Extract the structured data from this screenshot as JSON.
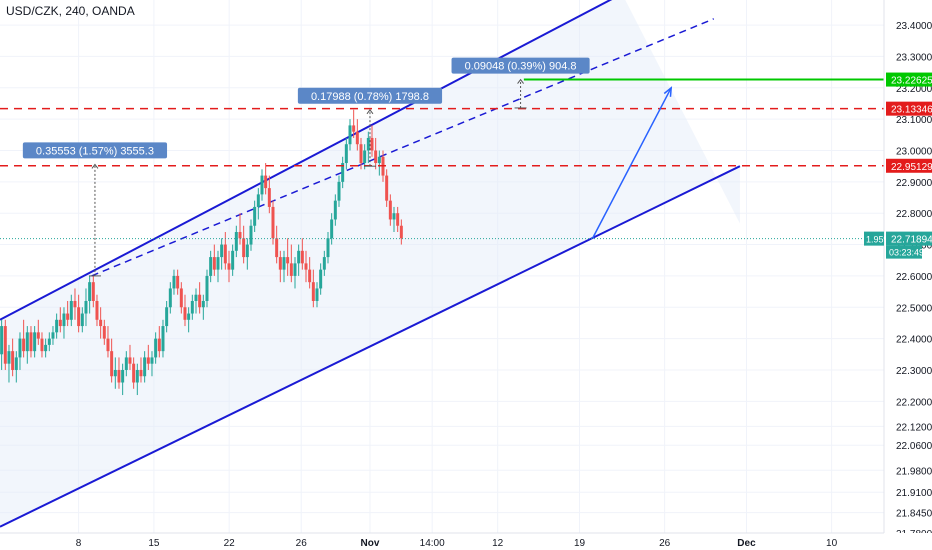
{
  "header": {
    "symbol": "USD/CZK, 240, OANDA"
  },
  "chart_data": {
    "type": "candlestick",
    "yaxis": {
      "range": [
        21.78,
        23.48
      ],
      "ticks": [
        "23.40000",
        "23.30000",
        "23.20000",
        "23.10000",
        "23.00000",
        "22.90000",
        "22.80000",
        "22.70000",
        "22.60000",
        "22.50000",
        "22.40000",
        "22.30000",
        "22.20000",
        "22.12000",
        "22.06000",
        "21.98000",
        "21.91000",
        "21.84500",
        "21.78000"
      ]
    },
    "xaxis": {
      "ticks": [
        {
          "label": "8",
          "x": 24
        },
        {
          "label": "15",
          "x": 47
        },
        {
          "label": "22",
          "x": 70
        },
        {
          "label": "26",
          "x": 92
        },
        {
          "label": "Nov",
          "x": 113
        },
        {
          "label": "14:00",
          "x": 132
        },
        {
          "label": "12",
          "x": 152
        },
        {
          "label": "19",
          "x": 177
        },
        {
          "label": "26",
          "x": 203
        },
        {
          "label": "Dec",
          "x": 228
        },
        {
          "label": "10",
          "x": 254
        }
      ]
    },
    "channel": {
      "upper": [
        [
          0,
          22.46
        ],
        [
          190,
          23.5
        ]
      ],
      "lower": [
        [
          0,
          21.8
        ],
        [
          226,
          22.95
        ]
      ],
      "middle_dashed": [
        [
          28,
          22.6
        ],
        [
          218,
          23.42
        ]
      ]
    },
    "horizontal_levels": [
      {
        "value": 23.22625,
        "label": "23.22625",
        "color": "#00c800",
        "style": "solid",
        "start_x": 160
      },
      {
        "value": 23.13346,
        "label": "23.13346",
        "color": "#e31c1c",
        "style": "dashed",
        "start_x": 0
      },
      {
        "value": 22.95129,
        "label": "22.95129",
        "color": "#e31c1c",
        "style": "dashed",
        "start_x": 0
      }
    ],
    "current_price": {
      "value": 22.71894,
      "label": "22.71894",
      "change": "1.95%",
      "countdown": "03:23:49",
      "color": "#26a69a"
    },
    "measurements": [
      {
        "text": "0.35553 (1.57%) 3555.3",
        "x": 29,
        "from": 22.6,
        "to": 22.95553
      },
      {
        "text": "0.17988 (0.78%) 1798.8",
        "x": 113,
        "from": 22.95,
        "to": 23.12988
      },
      {
        "text": "0.09048 (0.39%) 904.8",
        "x": 159,
        "from": 23.1357,
        "to": 23.22618
      }
    ],
    "projection_arrow": {
      "from": [
        181,
        22.72
      ],
      "to": [
        205,
        23.2
      ]
    },
    "candles": [
      [
        0,
        22.35,
        22.46,
        22.3,
        22.44
      ],
      [
        1,
        22.44,
        22.46,
        22.3,
        22.32
      ],
      [
        2,
        22.32,
        22.38,
        22.26,
        22.36
      ],
      [
        3,
        22.36,
        22.4,
        22.28,
        22.3
      ],
      [
        4,
        22.3,
        22.36,
        22.26,
        22.34
      ],
      [
        5,
        22.34,
        22.42,
        22.3,
        22.4
      ],
      [
        6,
        22.4,
        22.46,
        22.34,
        22.36
      ],
      [
        7,
        22.36,
        22.44,
        22.32,
        22.42
      ],
      [
        8,
        22.42,
        22.44,
        22.34,
        22.36
      ],
      [
        9,
        22.36,
        22.44,
        22.34,
        22.42
      ],
      [
        10,
        22.42,
        22.46,
        22.38,
        22.4
      ],
      [
        11,
        22.4,
        22.42,
        22.34,
        22.36
      ],
      [
        12,
        22.36,
        22.4,
        22.34,
        22.38
      ],
      [
        13,
        22.38,
        22.42,
        22.36,
        22.4
      ],
      [
        14,
        22.4,
        22.44,
        22.38,
        22.42
      ],
      [
        15,
        22.42,
        22.48,
        22.4,
        22.46
      ],
      [
        16,
        22.46,
        22.5,
        22.42,
        22.44
      ],
      [
        17,
        22.44,
        22.5,
        22.4,
        22.48
      ],
      [
        18,
        22.48,
        22.52,
        22.44,
        22.46
      ],
      [
        19,
        22.46,
        22.54,
        22.44,
        22.52
      ],
      [
        20,
        22.52,
        22.56,
        22.46,
        22.5
      ],
      [
        21,
        22.5,
        22.54,
        22.42,
        22.44
      ],
      [
        22,
        22.44,
        22.5,
        22.42,
        22.48
      ],
      [
        23,
        22.48,
        22.56,
        22.44,
        22.52
      ],
      [
        24,
        22.52,
        22.6,
        22.48,
        22.58
      ],
      [
        25,
        22.58,
        22.6,
        22.5,
        22.52
      ],
      [
        26,
        22.52,
        22.54,
        22.44,
        22.46
      ],
      [
        27,
        22.46,
        22.5,
        22.4,
        22.44
      ],
      [
        28,
        22.44,
        22.46,
        22.38,
        22.4
      ],
      [
        29,
        22.4,
        22.44,
        22.34,
        22.36
      ],
      [
        30,
        22.36,
        22.4,
        22.26,
        22.28
      ],
      [
        31,
        22.28,
        22.34,
        22.24,
        22.3
      ],
      [
        32,
        22.3,
        22.34,
        22.24,
        22.26
      ],
      [
        33,
        22.26,
        22.32,
        22.22,
        22.3
      ],
      [
        34,
        22.3,
        22.36,
        22.28,
        22.34
      ],
      [
        35,
        22.34,
        22.38,
        22.3,
        22.32
      ],
      [
        36,
        22.32,
        22.34,
        22.24,
        22.26
      ],
      [
        37,
        22.26,
        22.32,
        22.22,
        22.3
      ],
      [
        38,
        22.3,
        22.34,
        22.26,
        22.28
      ],
      [
        39,
        22.28,
        22.36,
        22.26,
        22.34
      ],
      [
        40,
        22.34,
        22.38,
        22.3,
        22.32
      ],
      [
        41,
        22.32,
        22.36,
        22.28,
        22.34
      ],
      [
        42,
        22.34,
        22.42,
        22.32,
        22.4
      ],
      [
        43,
        22.4,
        22.44,
        22.34,
        22.36
      ],
      [
        44,
        22.36,
        22.46,
        22.34,
        22.44
      ],
      [
        45,
        22.44,
        22.52,
        22.42,
        22.5
      ],
      [
        46,
        22.5,
        22.58,
        22.48,
        22.56
      ],
      [
        47,
        22.56,
        22.62,
        22.54,
        22.6
      ],
      [
        48,
        22.6,
        22.62,
        22.54,
        22.56
      ],
      [
        49,
        22.56,
        22.58,
        22.48,
        22.5
      ],
      [
        50,
        22.5,
        22.54,
        22.44,
        22.46
      ],
      [
        51,
        22.46,
        22.5,
        22.42,
        22.48
      ],
      [
        52,
        22.48,
        22.54,
        22.46,
        22.52
      ],
      [
        53,
        22.52,
        22.56,
        22.48,
        22.54
      ],
      [
        54,
        22.54,
        22.58,
        22.48,
        22.5
      ],
      [
        55,
        22.5,
        22.54,
        22.46,
        22.52
      ],
      [
        56,
        22.52,
        22.62,
        22.5,
        22.6
      ],
      [
        57,
        22.6,
        22.68,
        22.58,
        22.66
      ],
      [
        58,
        22.66,
        22.7,
        22.6,
        22.62
      ],
      [
        59,
        22.62,
        22.68,
        22.58,
        22.66
      ],
      [
        60,
        22.66,
        22.72,
        22.62,
        22.7
      ],
      [
        61,
        22.7,
        22.74,
        22.62,
        22.64
      ],
      [
        62,
        22.64,
        22.68,
        22.58,
        22.62
      ],
      [
        63,
        22.62,
        22.7,
        22.6,
        22.68
      ],
      [
        64,
        22.68,
        22.76,
        22.66,
        22.74
      ],
      [
        65,
        22.74,
        22.8,
        22.7,
        22.72
      ],
      [
        66,
        22.72,
        22.76,
        22.64,
        22.66
      ],
      [
        67,
        22.66,
        22.72,
        22.62,
        22.7
      ],
      [
        68,
        22.7,
        22.78,
        22.68,
        22.76
      ],
      [
        69,
        22.76,
        22.84,
        22.74,
        22.82
      ],
      [
        70,
        22.82,
        22.88,
        22.78,
        22.86
      ],
      [
        71,
        22.86,
        22.94,
        22.84,
        22.92
      ],
      [
        72,
        22.92,
        22.96,
        22.86,
        22.88
      ],
      [
        73,
        22.88,
        22.92,
        22.8,
        22.82
      ],
      [
        74,
        22.82,
        22.84,
        22.7,
        22.72
      ],
      [
        75,
        22.72,
        22.76,
        22.64,
        22.66
      ],
      [
        76,
        22.66,
        22.68,
        22.58,
        22.62
      ],
      [
        77,
        22.62,
        22.68,
        22.58,
        22.66
      ],
      [
        78,
        22.66,
        22.72,
        22.6,
        22.64
      ],
      [
        79,
        22.64,
        22.7,
        22.58,
        22.6
      ],
      [
        80,
        22.6,
        22.66,
        22.56,
        22.64
      ],
      [
        81,
        22.64,
        22.7,
        22.6,
        22.68
      ],
      [
        82,
        22.68,
        22.72,
        22.62,
        22.64
      ],
      [
        83,
        22.64,
        22.68,
        22.58,
        22.62
      ],
      [
        84,
        22.62,
        22.66,
        22.56,
        22.58
      ],
      [
        85,
        22.58,
        22.62,
        22.5,
        22.52
      ],
      [
        86,
        22.52,
        22.58,
        22.5,
        22.56
      ],
      [
        87,
        22.56,
        22.64,
        22.54,
        22.62
      ],
      [
        88,
        22.62,
        22.68,
        22.6,
        22.66
      ],
      [
        89,
        22.66,
        22.74,
        22.64,
        22.72
      ],
      [
        90,
        22.72,
        22.8,
        22.7,
        22.78
      ],
      [
        91,
        22.78,
        22.86,
        22.76,
        22.84
      ],
      [
        92,
        22.84,
        22.92,
        22.82,
        22.9
      ],
      [
        93,
        22.9,
        22.98,
        22.88,
        22.96
      ],
      [
        94,
        22.96,
        23.04,
        22.94,
        23.02
      ],
      [
        95,
        23.02,
        23.1,
        23.0,
        23.08
      ],
      [
        96,
        23.08,
        23.13,
        23.04,
        23.06
      ],
      [
        97,
        23.06,
        23.1,
        23.0,
        23.02
      ],
      [
        98,
        23.02,
        23.04,
        22.94,
        22.96
      ],
      [
        99,
        22.96,
        23.02,
        22.94,
        23.0
      ],
      [
        100,
        23.0,
        23.06,
        22.96,
        23.04
      ],
      [
        101,
        23.04,
        23.08,
        22.98,
        23.0
      ],
      [
        102,
        23.0,
        23.04,
        22.94,
        22.96
      ],
      [
        103,
        22.96,
        23.0,
        22.92,
        22.98
      ],
      [
        104,
        22.98,
        23.0,
        22.9,
        22.92
      ],
      [
        105,
        22.92,
        22.94,
        22.82,
        22.84
      ],
      [
        106,
        22.84,
        22.86,
        22.76,
        22.78
      ],
      [
        107,
        22.78,
        22.82,
        22.74,
        22.8
      ],
      [
        108,
        22.8,
        22.82,
        22.74,
        22.76
      ],
      [
        109,
        22.76,
        22.78,
        22.7,
        22.72
      ]
    ]
  }
}
